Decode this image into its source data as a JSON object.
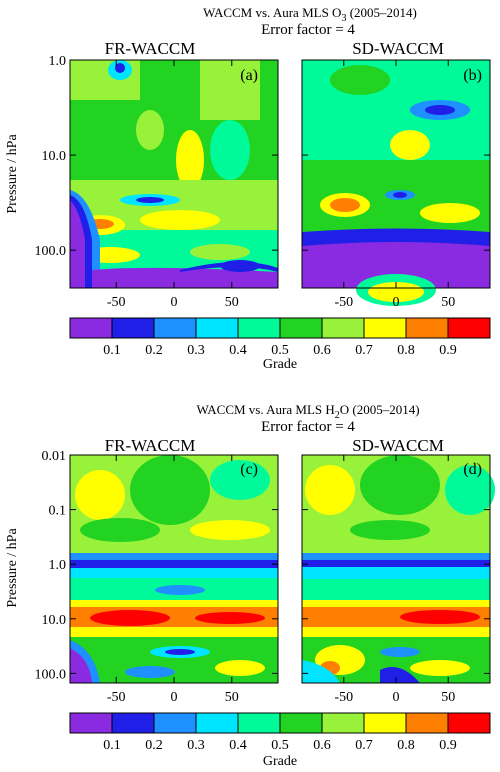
{
  "figure": {
    "top": {
      "title_prefix": "WACCM vs. Aura MLS O",
      "title_sub": "3",
      "title_suffix": " (2005–2014)",
      "subtitle": "Error factor = 4",
      "ylabel": "Pressure / hPa",
      "y_ticks": [
        "1.0",
        "10.0",
        "100.0"
      ],
      "x_ticks": [
        "-50",
        "0",
        "50"
      ],
      "panels": [
        {
          "name": "FR-WACCM",
          "label": "(a)"
        },
        {
          "name": "SD-WACCM",
          "label": "(b)"
        }
      ]
    },
    "bottom": {
      "title_prefix": "WACCM vs. Aura MLS H",
      "title_sub": "2",
      "title_suffix": "O (2005–2014)",
      "subtitle": "Error factor = 4",
      "ylabel": "Pressure / hPa",
      "y_ticks": [
        "0.01",
        "0.1",
        "1.0",
        "10.0",
        "100.0"
      ],
      "x_ticks": [
        "-50",
        "0",
        "50"
      ],
      "panels": [
        {
          "name": "FR-WACCM",
          "label": "(c)"
        },
        {
          "name": "SD-WACCM",
          "label": "(d)"
        }
      ]
    },
    "colorbar": {
      "label": "Grade",
      "ticks": [
        "0.1",
        "0.2",
        "0.3",
        "0.4",
        "0.5",
        "0.6",
        "0.7",
        "0.8",
        "0.9"
      ],
      "colors": [
        "#8a2be2",
        "#1f1fe8",
        "#1e90ff",
        "#00e5ff",
        "#00fa9a",
        "#22d322",
        "#98f23a",
        "#ffff00",
        "#ff7f00",
        "#ff0000"
      ]
    }
  },
  "chart_data": [
    {
      "type": "heatmap",
      "title": "WACCM vs. Aura MLS O3 (2005–2014)",
      "subtitle": "Error factor = 4",
      "panels": [
        "FR-WACCM (a)",
        "SD-WACCM (b)"
      ],
      "xlabel": "",
      "ylabel": "Pressure / hPa",
      "x_range": [
        -90,
        90
      ],
      "y_range_hPa": [
        250,
        1
      ],
      "y_scale": "log",
      "x_ticks": [
        -50,
        0,
        50
      ],
      "y_ticks": [
        1,
        10,
        100
      ],
      "colorbar": {
        "label": "Grade",
        "range": [
          0,
          1
        ],
        "levels": [
          0,
          0.1,
          0.2,
          0.3,
          0.4,
          0.5,
          0.6,
          0.7,
          0.8,
          0.9,
          1.0
        ]
      }
    },
    {
      "type": "heatmap",
      "title": "WACCM vs. Aura MLS H2O (2005–2014)",
      "subtitle": "Error factor = 4",
      "panels": [
        "FR-WACCM (c)",
        "SD-WACCM (d)"
      ],
      "xlabel": "",
      "ylabel": "Pressure / hPa",
      "x_range": [
        -90,
        90
      ],
      "y_range_hPa": [
        150,
        0.01
      ],
      "y_scale": "log",
      "x_ticks": [
        -50,
        0,
        50
      ],
      "y_ticks": [
        0.01,
        0.1,
        1,
        10,
        100
      ],
      "colorbar": {
        "label": "Grade",
        "range": [
          0,
          1
        ],
        "levels": [
          0,
          0.1,
          0.2,
          0.3,
          0.4,
          0.5,
          0.6,
          0.7,
          0.8,
          0.9,
          1.0
        ]
      }
    }
  ]
}
